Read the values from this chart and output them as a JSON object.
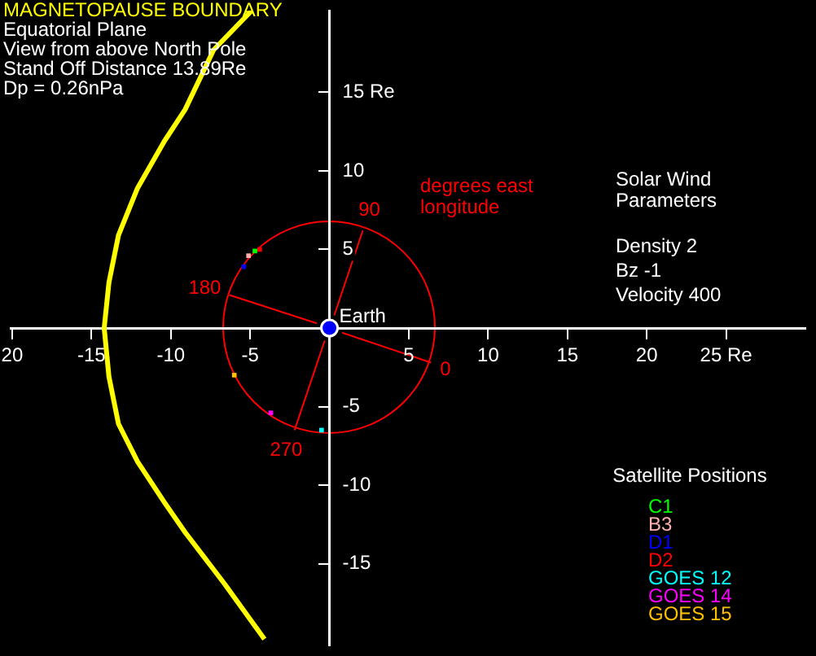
{
  "chart_data": {
    "type": "scatter",
    "title": "MAGNETOPAUSE BOUNDARY",
    "legend_title": "Satellite Positions",
    "legend": "bottom right",
    "grid": false,
    "xlim": [
      -20.1,
      30
    ],
    "ylim": [
      -20.2,
      20.2
    ],
    "xticks": [
      {
        "value": -20,
        "label": "20"
      },
      -15,
      -10,
      -5,
      5,
      10,
      15,
      20,
      {
        "value": 25,
        "label": "25 Re"
      }
    ],
    "yticks": [
      -15,
      -10,
      -5,
      5,
      10,
      {
        "value": 15,
        "label": "15 Re"
      }
    ],
    "annotations": [
      "Equatorial Plane",
      "View from above North Pole",
      "Stand Off Distance 13.89Re",
      "Dp = 0.26nPa",
      "Solar Wind Parameters",
      "Density 2",
      "Bz -1",
      "Velocity 400",
      "degrees east longitude",
      {
        "text": "0",
        "x": 6.4,
        "y": -2.2
      },
      {
        "text": "90",
        "x": 2.1,
        "y": 6.2
      },
      {
        "text": "180",
        "x": -6.3,
        "y": 2.1
      },
      {
        "text": "270",
        "x": -2.2,
        "y": -6.5
      },
      {
        "text": "Earth",
        "x": 0,
        "y": 0
      }
    ],
    "series": [
      {
        "type": "line",
        "color": "#ffff00",
        "marker": "none",
        "x": [
          -4.9,
          -7.3,
          -9.1,
          -10.4,
          -12.1,
          -13.3,
          -13.9,
          -14.2,
          -13.9,
          -13.3,
          -12.1,
          -10.4,
          -9.1,
          -6.6,
          -4.1
        ],
        "values": [
          20.2,
          17.7,
          13.9,
          11.9,
          8.9,
          5.9,
          2.9,
          0,
          -3.1,
          -6.1,
          -8.5,
          -11.1,
          -13.0,
          -16.3,
          -19.8
        ]
      },
      {
        "type": "line",
        "color": "#ff0000",
        "marker": "none",
        "x": [
          0.8,
          6.4
        ],
        "values": [
          -0.3,
          -2.2
        ]
      },
      {
        "type": "line",
        "color": "#ff0000",
        "marker": "none",
        "x": [
          0.3,
          2.1
        ],
        "values": [
          0.8,
          6.2
        ]
      },
      {
        "type": "line",
        "color": "#ff0000",
        "marker": "none",
        "x": [
          -0.8,
          -6.3
        ],
        "values": [
          0.3,
          2.1
        ]
      },
      {
        "type": "line",
        "color": "#ff0000",
        "marker": "none",
        "x": [
          -0.3,
          -2.2
        ],
        "values": [
          -0.8,
          -6.5
        ]
      },
      {
        "type": "scatter",
        "color": "#0000ff",
        "marker": "circle",
        "x": [
          0
        ],
        "values": [
          0
        ]
      },
      {
        "type": "scatter",
        "name": "C1",
        "color": "#00ff00",
        "marker": "square",
        "x": [
          -4.7
        ],
        "values": [
          4.9
        ]
      },
      {
        "type": "scatter",
        "name": "B3",
        "color": "#ffb0b0",
        "marker": "square",
        "x": [
          -5.1
        ],
        "values": [
          4.6
        ]
      },
      {
        "type": "scatter",
        "name": "D1",
        "color": "#0000ff",
        "marker": "square",
        "x": [
          -5.4
        ],
        "values": [
          3.9
        ]
      },
      {
        "type": "scatter",
        "name": "D2",
        "color": "#ff0000",
        "marker": "square",
        "x": [
          -4.4
        ],
        "values": [
          5.0
        ]
      },
      {
        "type": "scatter",
        "name": "GOES 12",
        "color": "#00ffff",
        "marker": "square",
        "x": [
          -0.5
        ],
        "values": [
          -6.5
        ]
      },
      {
        "type": "scatter",
        "name": "GOES 14",
        "color": "#ff00ff",
        "marker": "square",
        "x": [
          -3.7
        ],
        "values": [
          -5.4
        ]
      },
      {
        "type": "scatter",
        "name": "GOES 15",
        "color": "#ffc000",
        "marker": "square",
        "x": [
          -6.0
        ],
        "values": [
          -3.0
        ]
      }
    ]
  }
}
